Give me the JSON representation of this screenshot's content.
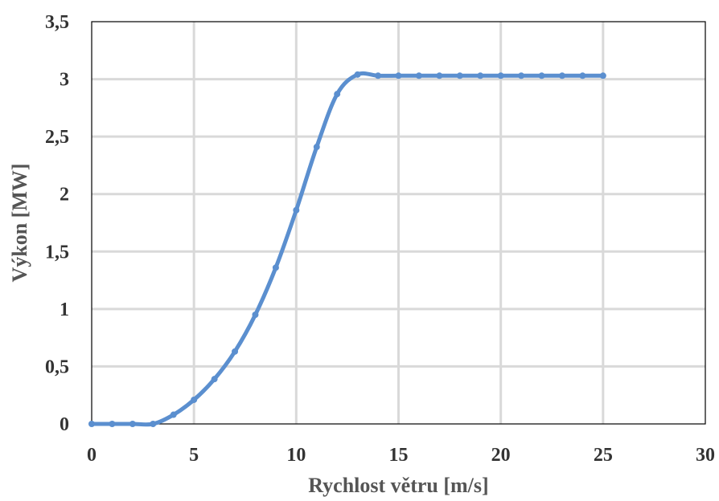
{
  "colors": {
    "series": "#5b8fcf",
    "grid": "#d9d9d9",
    "axis_text": "#333333",
    "title_text": "#555555"
  },
  "chart_data": {
    "type": "line",
    "title": "",
    "xlabel": "Rychlost větru [m/s]",
    "ylabel": "Výkon [MW]",
    "xlim": [
      0,
      30
    ],
    "ylim": [
      0,
      3.5
    ],
    "grid": true,
    "legend": "none",
    "x_ticks": [
      0,
      5,
      10,
      15,
      20,
      25,
      30
    ],
    "x_tick_labels": [
      "0",
      "5",
      "10",
      "15",
      "20",
      "25",
      "30"
    ],
    "y_ticks": [
      0,
      0.5,
      1,
      1.5,
      2,
      2.5,
      3,
      3.5
    ],
    "y_tick_labels": [
      "0",
      "0,5",
      "1",
      "1,5",
      "2",
      "2,5",
      "3",
      "3,5"
    ],
    "series": [
      {
        "x": [
          0,
          1,
          2,
          3,
          4,
          5,
          6,
          7,
          8,
          9,
          10,
          11,
          12,
          13,
          14,
          15,
          16,
          17,
          18,
          19,
          20,
          21,
          22,
          23,
          24,
          25
        ],
        "y": [
          0,
          0,
          0,
          0,
          0.08,
          0.21,
          0.39,
          0.63,
          0.95,
          1.36,
          1.86,
          2.41,
          2.87,
          3.04,
          3.03,
          3.03,
          3.03,
          3.03,
          3.03,
          3.03,
          3.03,
          3.03,
          3.03,
          3.03,
          3.03,
          3.03
        ]
      }
    ]
  }
}
